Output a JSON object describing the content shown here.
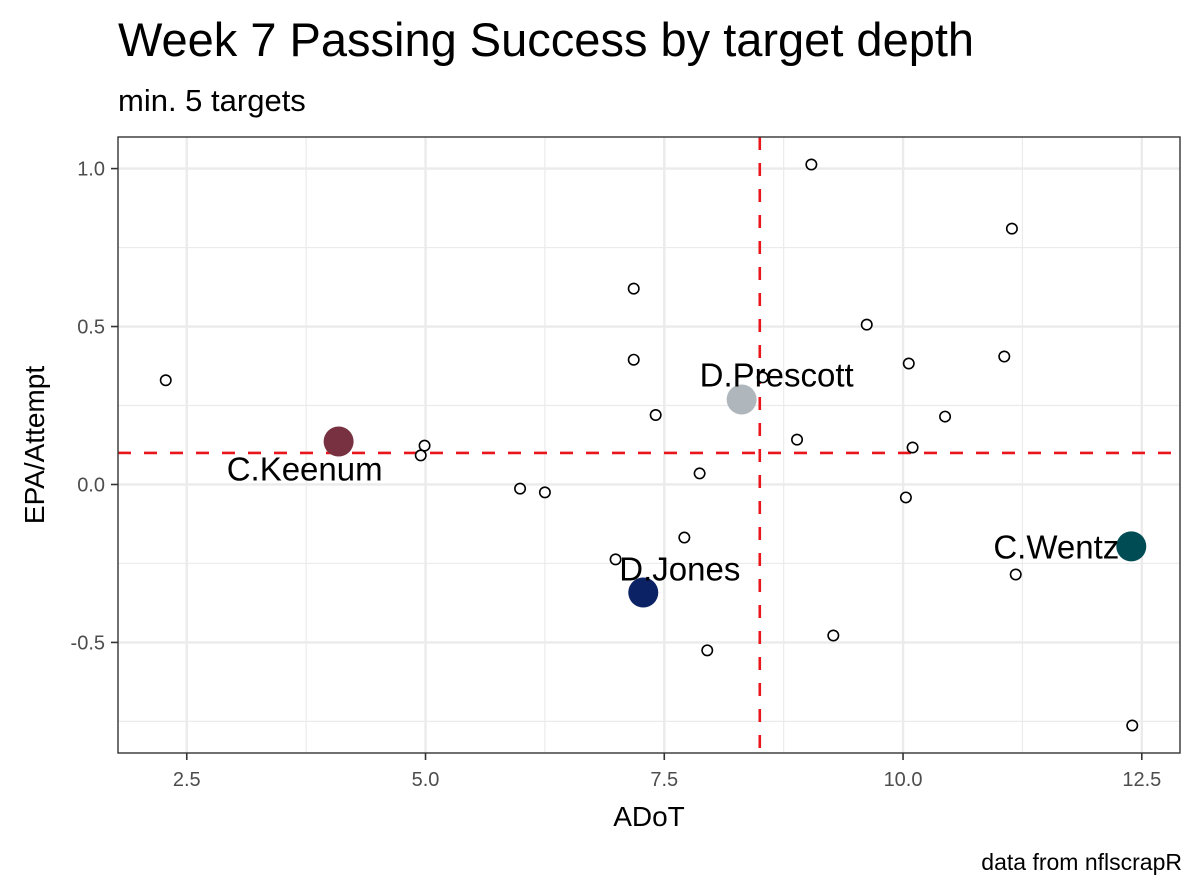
{
  "chart_data": {
    "type": "scatter",
    "title": "Week 7 Passing Success by target depth",
    "subtitle": "min. 5 targets",
    "xlabel": "ADoT",
    "ylabel": "EPA/Attempt",
    "caption": "data from nflscrapR",
    "xlim": [
      1.78,
      12.9
    ],
    "ylim": [
      -0.85,
      1.1
    ],
    "x_ticks": [
      2.5,
      5.0,
      7.5,
      10.0,
      12.5
    ],
    "x_tick_labels": [
      "2.5",
      "5.0",
      "7.5",
      "10.0",
      "12.5"
    ],
    "x_minor": [
      3.75,
      6.25,
      8.75,
      11.25
    ],
    "y_ticks": [
      -0.5,
      0.0,
      0.5,
      1.0
    ],
    "y_tick_labels": [
      "-0.5",
      "0.0",
      "0.5",
      "1.0"
    ],
    "y_minor": [
      -0.75,
      -0.25,
      0.25,
      0.75
    ],
    "grid": true,
    "reference_lines": {
      "vertical_x": 8.5,
      "horizontal_y": 0.1,
      "color": "#e8161b",
      "style": "dashed"
    },
    "points": [
      {
        "x": 2.28,
        "y": 0.33
      },
      {
        "x": 4.99,
        "y": 0.123
      },
      {
        "x": 4.95,
        "y": 0.092
      },
      {
        "x": 5.99,
        "y": -0.013
      },
      {
        "x": 6.25,
        "y": -0.025
      },
      {
        "x": 7.18,
        "y": 0.62
      },
      {
        "x": 7.18,
        "y": 0.395
      },
      {
        "x": 7.41,
        "y": 0.22
      },
      {
        "x": 7.87,
        "y": 0.035
      },
      {
        "x": 7.71,
        "y": -0.168
      },
      {
        "x": 6.99,
        "y": -0.237
      },
      {
        "x": 7.95,
        "y": -0.525
      },
      {
        "x": 8.53,
        "y": 0.339
      },
      {
        "x": 8.89,
        "y": 0.142
      },
      {
        "x": 9.04,
        "y": 1.013
      },
      {
        "x": 9.62,
        "y": 0.506
      },
      {
        "x": 10.06,
        "y": 0.383
      },
      {
        "x": 10.1,
        "y": 0.117
      },
      {
        "x": 10.03,
        "y": -0.041
      },
      {
        "x": 10.44,
        "y": 0.215
      },
      {
        "x": 11.06,
        "y": 0.405
      },
      {
        "x": 11.14,
        "y": 0.81
      },
      {
        "x": 11.18,
        "y": -0.285
      },
      {
        "x": 9.27,
        "y": -0.478
      },
      {
        "x": 12.4,
        "y": -0.763
      }
    ],
    "highlighted": [
      {
        "name": "C.Keenum",
        "x": 4.09,
        "y": 0.136,
        "color": "#773141",
        "label_anchor": "below-left"
      },
      {
        "name": "D.Prescott",
        "x": 8.31,
        "y": 0.269,
        "color": "#b0b7bc",
        "label_anchor": "above-right"
      },
      {
        "name": "D.Jones",
        "x": 7.28,
        "y": -0.342,
        "color": "#0b2265",
        "label_anchor": "above-right"
      },
      {
        "name": "C.Wentz",
        "x": 12.39,
        "y": -0.196,
        "color": "#004c54",
        "label_anchor": "left"
      }
    ]
  }
}
